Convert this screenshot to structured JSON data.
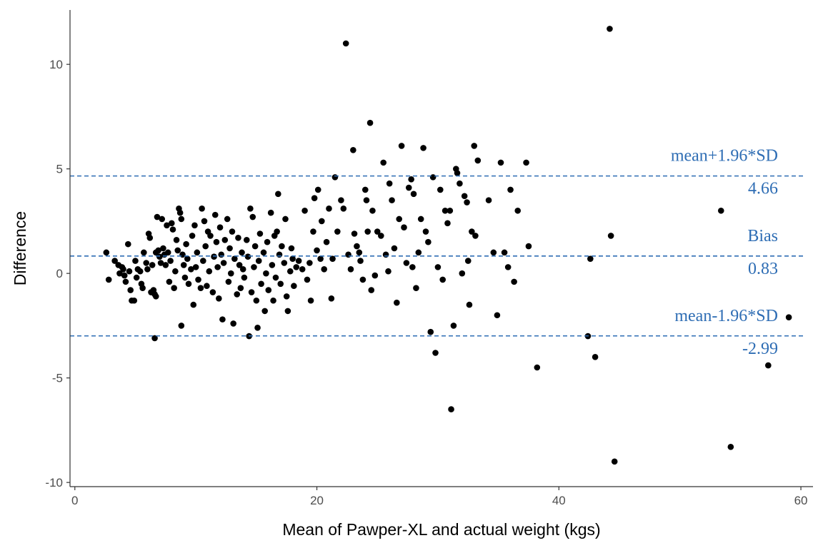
{
  "chart_data": {
    "type": "scatter",
    "xlabel": "Mean of Pawper-XL and actual weight (kgs)",
    "ylabel": "Difference",
    "xlim": [
      -0.4,
      61.0
    ],
    "ylim": [
      -10.2,
      12.6
    ],
    "x_ticks": [
      0,
      20,
      40,
      60
    ],
    "y_ticks": [
      -10,
      -5,
      0,
      5,
      10
    ],
    "x_tick_labels": [
      "0",
      "20",
      "40",
      "60"
    ],
    "y_tick_labels": [
      "-10",
      "-5",
      "0",
      "5",
      "10"
    ],
    "grid": false,
    "legend": "none",
    "colors": {
      "points": "#000000",
      "reference": "#2e6db4",
      "axis": "#333333"
    },
    "reference_lines": [
      {
        "value": 4.66,
        "name": "mean+1.96*SD",
        "label": "4.66"
      },
      {
        "value": 0.83,
        "name": "Bias",
        "label": "0.83"
      },
      {
        "value": -2.99,
        "name": "mean-1.96*SD",
        "label": "-2.99"
      }
    ],
    "points": [
      [
        2.6,
        1.0
      ],
      [
        2.8,
        -0.3
      ],
      [
        3.3,
        0.6
      ],
      [
        3.6,
        0.4
      ],
      [
        3.7,
        0.0
      ],
      [
        3.9,
        0.3
      ],
      [
        4.0,
        0.2
      ],
      [
        4.1,
        -0.1
      ],
      [
        4.2,
        -0.4
      ],
      [
        4.4,
        1.4
      ],
      [
        4.5,
        0.1
      ],
      [
        4.6,
        -0.8
      ],
      [
        4.7,
        -1.3
      ],
      [
        4.9,
        -1.3
      ],
      [
        5.0,
        0.6
      ],
      [
        5.1,
        -0.2
      ],
      [
        5.2,
        0.2
      ],
      [
        5.4,
        0.1
      ],
      [
        5.5,
        -0.5
      ],
      [
        5.6,
        -0.7
      ],
      [
        5.7,
        1.0
      ],
      [
        5.9,
        0.5
      ],
      [
        6.0,
        0.2
      ],
      [
        6.1,
        1.9
      ],
      [
        6.2,
        1.7
      ],
      [
        6.3,
        -0.9
      ],
      [
        6.4,
        0.4
      ],
      [
        6.5,
        -0.8
      ],
      [
        6.6,
        -1.0
      ],
      [
        6.7,
        -1.1
      ],
      [
        6.6,
        -3.1
      ],
      [
        6.7,
        1.0
      ],
      [
        6.8,
        2.7
      ],
      [
        6.9,
        1.1
      ],
      [
        7.0,
        0.8
      ],
      [
        7.1,
        0.5
      ],
      [
        7.2,
        2.6
      ],
      [
        7.3,
        1.2
      ],
      [
        7.4,
        0.9
      ],
      [
        7.5,
        0.4
      ],
      [
        7.6,
        2.3
      ],
      [
        7.7,
        1.0
      ],
      [
        7.8,
        -0.4
      ],
      [
        7.9,
        0.6
      ],
      [
        8.0,
        2.4
      ],
      [
        8.1,
        2.1
      ],
      [
        8.2,
        -0.7
      ],
      [
        8.3,
        0.1
      ],
      [
        8.4,
        1.6
      ],
      [
        8.5,
        1.1
      ],
      [
        8.6,
        3.1
      ],
      [
        8.7,
        2.9
      ],
      [
        8.8,
        2.6
      ],
      [
        8.9,
        0.9
      ],
      [
        9.0,
        0.4
      ],
      [
        8.8,
        -2.5
      ],
      [
        9.1,
        -0.2
      ],
      [
        9.2,
        1.4
      ],
      [
        9.3,
        0.7
      ],
      [
        9.4,
        -0.5
      ],
      [
        9.6,
        0.2
      ],
      [
        9.7,
        1.8
      ],
      [
        9.8,
        -1.5
      ],
      [
        9.9,
        2.3
      ],
      [
        10.0,
        0.3
      ],
      [
        10.1,
        1.0
      ],
      [
        10.2,
        -0.3
      ],
      [
        10.4,
        -0.7
      ],
      [
        10.5,
        3.1
      ],
      [
        10.6,
        0.6
      ],
      [
        10.7,
        2.5
      ],
      [
        10.8,
        1.3
      ],
      [
        10.9,
        -0.6
      ],
      [
        11.0,
        2.0
      ],
      [
        11.1,
        0.1
      ],
      [
        11.2,
        1.8
      ],
      [
        11.4,
        -0.9
      ],
      [
        11.5,
        0.8
      ],
      [
        11.6,
        2.8
      ],
      [
        11.7,
        1.5
      ],
      [
        11.8,
        0.3
      ],
      [
        11.9,
        -1.2
      ],
      [
        12.0,
        2.2
      ],
      [
        12.1,
        0.9
      ],
      [
        12.2,
        -2.2
      ],
      [
        12.3,
        0.5
      ],
      [
        12.4,
        1.6
      ],
      [
        12.6,
        2.6
      ],
      [
        12.7,
        -0.4
      ],
      [
        12.8,
        1.2
      ],
      [
        12.9,
        0.0
      ],
      [
        13.0,
        2.0
      ],
      [
        13.1,
        -2.4
      ],
      [
        13.2,
        0.7
      ],
      [
        13.4,
        -1.0
      ],
      [
        13.5,
        1.7
      ],
      [
        13.6,
        0.4
      ],
      [
        13.7,
        -0.7
      ],
      [
        13.8,
        1.0
      ],
      [
        13.9,
        0.2
      ],
      [
        14.0,
        -0.2
      ],
      [
        14.2,
        1.6
      ],
      [
        14.3,
        0.8
      ],
      [
        14.4,
        -3.0
      ],
      [
        14.5,
        3.1
      ],
      [
        14.6,
        -0.9
      ],
      [
        14.7,
        2.7
      ],
      [
        14.8,
        0.3
      ],
      [
        14.9,
        1.3
      ],
      [
        15.0,
        -1.3
      ],
      [
        15.1,
        -2.6
      ],
      [
        15.2,
        0.6
      ],
      [
        15.3,
        1.9
      ],
      [
        15.4,
        -0.5
      ],
      [
        15.6,
        1.0
      ],
      [
        15.7,
        -1.8
      ],
      [
        15.8,
        0.0
      ],
      [
        15.9,
        1.5
      ],
      [
        16.0,
        -0.8
      ],
      [
        16.2,
        2.9
      ],
      [
        16.3,
        0.4
      ],
      [
        16.4,
        -1.3
      ],
      [
        16.5,
        1.8
      ],
      [
        16.6,
        -0.2
      ],
      [
        16.7,
        2.0
      ],
      [
        16.8,
        3.8
      ],
      [
        16.9,
        0.9
      ],
      [
        17.0,
        -0.5
      ],
      [
        17.1,
        1.3
      ],
      [
        17.3,
        0.5
      ],
      [
        17.4,
        2.6
      ],
      [
        17.5,
        -1.1
      ],
      [
        17.6,
        -1.8
      ],
      [
        17.8,
        0.1
      ],
      [
        17.9,
        1.2
      ],
      [
        18.0,
        0.7
      ],
      [
        18.1,
        -0.6
      ],
      [
        18.3,
        0.3
      ],
      [
        18.5,
        0.6
      ],
      [
        18.8,
        0.2
      ],
      [
        19.0,
        3.0
      ],
      [
        19.2,
        -0.3
      ],
      [
        19.4,
        0.5
      ],
      [
        19.5,
        -1.3
      ],
      [
        19.7,
        2.0
      ],
      [
        19.8,
        3.6
      ],
      [
        20.0,
        1.1
      ],
      [
        20.1,
        4.0
      ],
      [
        20.3,
        0.7
      ],
      [
        20.4,
        2.5
      ],
      [
        20.6,
        0.2
      ],
      [
        20.8,
        1.5
      ],
      [
        21.0,
        3.1
      ],
      [
        21.2,
        -1.2
      ],
      [
        21.3,
        0.7
      ],
      [
        21.5,
        4.6
      ],
      [
        21.7,
        2.0
      ],
      [
        22.0,
        3.5
      ],
      [
        22.2,
        3.1
      ],
      [
        22.4,
        11.0
      ],
      [
        22.6,
        0.9
      ],
      [
        22.8,
        0.2
      ],
      [
        23.0,
        5.9
      ],
      [
        23.1,
        1.9
      ],
      [
        23.3,
        1.3
      ],
      [
        23.5,
        1.0
      ],
      [
        23.6,
        0.6
      ],
      [
        23.8,
        -0.3
      ],
      [
        24.0,
        4.0
      ],
      [
        24.1,
        3.5
      ],
      [
        24.2,
        2.0
      ],
      [
        24.4,
        7.2
      ],
      [
        24.5,
        -0.8
      ],
      [
        24.6,
        3.0
      ],
      [
        24.8,
        -0.1
      ],
      [
        25.0,
        2.0
      ],
      [
        25.3,
        1.8
      ],
      [
        25.5,
        5.3
      ],
      [
        25.7,
        0.9
      ],
      [
        25.9,
        0.1
      ],
      [
        26.0,
        4.3
      ],
      [
        26.2,
        3.5
      ],
      [
        26.4,
        1.2
      ],
      [
        26.6,
        -1.4
      ],
      [
        26.8,
        2.6
      ],
      [
        27.0,
        6.1
      ],
      [
        27.2,
        2.2
      ],
      [
        27.4,
        0.5
      ],
      [
        27.6,
        4.1
      ],
      [
        27.8,
        4.5
      ],
      [
        27.9,
        0.3
      ],
      [
        28.0,
        3.8
      ],
      [
        28.2,
        -0.7
      ],
      [
        28.4,
        1.0
      ],
      [
        28.6,
        2.6
      ],
      [
        28.8,
        6.0
      ],
      [
        29.0,
        2.0
      ],
      [
        29.2,
        1.5
      ],
      [
        29.4,
        -2.8
      ],
      [
        29.6,
        4.6
      ],
      [
        29.8,
        -3.8
      ],
      [
        30.0,
        0.3
      ],
      [
        30.2,
        4.0
      ],
      [
        30.4,
        -0.3
      ],
      [
        30.6,
        3.0
      ],
      [
        30.8,
        2.4
      ],
      [
        31.0,
        3.0
      ],
      [
        31.1,
        -6.5
      ],
      [
        31.3,
        -2.5
      ],
      [
        31.5,
        5.0
      ],
      [
        31.6,
        4.8
      ],
      [
        31.8,
        4.3
      ],
      [
        32.0,
        0.0
      ],
      [
        32.2,
        3.7
      ],
      [
        32.4,
        3.4
      ],
      [
        32.5,
        0.6
      ],
      [
        32.6,
        -1.5
      ],
      [
        32.8,
        2.0
      ],
      [
        33.0,
        6.1
      ],
      [
        33.1,
        1.8
      ],
      [
        33.3,
        5.4
      ],
      [
        34.2,
        3.5
      ],
      [
        34.6,
        1.0
      ],
      [
        34.9,
        -2.0
      ],
      [
        35.2,
        5.3
      ],
      [
        35.5,
        1.0
      ],
      [
        35.8,
        0.3
      ],
      [
        36.0,
        4.0
      ],
      [
        36.3,
        -0.4
      ],
      [
        36.6,
        3.0
      ],
      [
        37.3,
        5.3
      ],
      [
        37.5,
        1.3
      ],
      [
        38.2,
        -4.5
      ],
      [
        42.4,
        -3.0
      ],
      [
        42.6,
        0.7
      ],
      [
        43.0,
        -4.0
      ],
      [
        44.2,
        11.7
      ],
      [
        44.3,
        1.8
      ],
      [
        44.6,
        -9.0
      ],
      [
        53.4,
        3.0
      ],
      [
        54.2,
        -8.3
      ],
      [
        57.3,
        -4.4
      ],
      [
        59.0,
        -2.1
      ]
    ]
  }
}
